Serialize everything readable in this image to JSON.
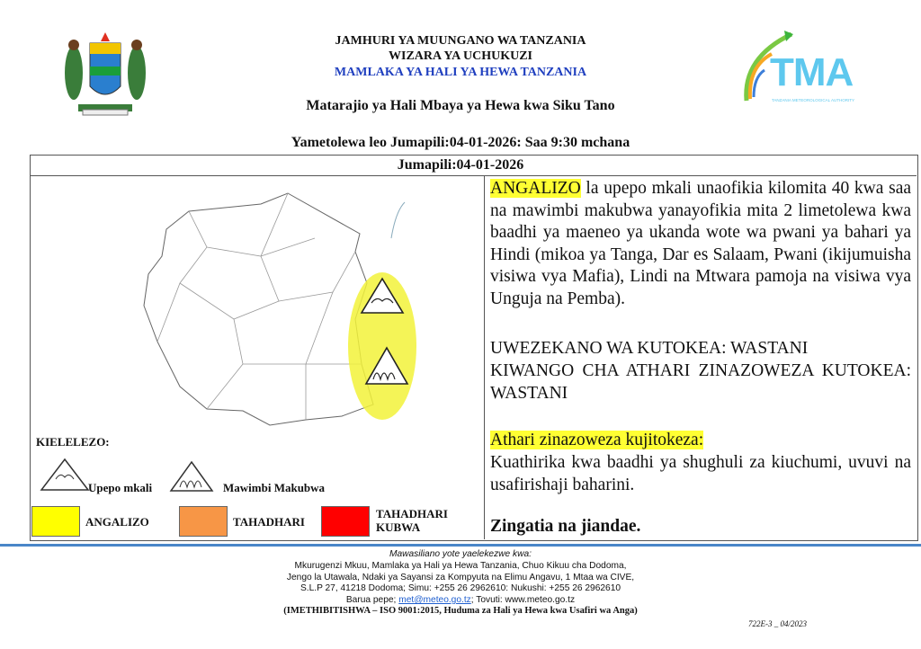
{
  "header": {
    "line1": "JAMHURI YA MUUNGANO WA TANZANIA",
    "line2": "WIZARA YA UCHUKUZI",
    "line3": "MAMLAKA YA HALI YA HEWA TANZANIA",
    "title": "Matarajio ya Hali Mbaya ya Hewa kwa Siku Tano",
    "issued": "Yametolewa leo Jumapili:04-01-2026: Saa 9:30 mchana",
    "logo_text": "TMA",
    "logo_sub": "TANZANIA METEOROLOGICAL AUTHORITY"
  },
  "day": "Jumapili:04-01-2026",
  "warning": {
    "level_word": "ANGALIZO",
    "para1": " la upepo mkali unaofikia kilomita 40 kwa saa na mawimbi makubwa yanayofikia mita 2 limetolewa kwa baadhi ya maeneo ya ukanda wote wa pwani ya bahari ya Hindi (mikoa ya Tanga, Dar es Salaam, Pwani (ikijumuisha visiwa vya Mafia), Lindi na Mtwara pamoja na visiwa vya Unguja na Pemba).",
    "likelihood": "UWEZEKANO WA KUTOKEA: WASTANI",
    "impact_level": "KIWANGO CHA ATHARI ZINAZOWEZA KUTOKEA: WASTANI",
    "impacts_heading": "Athari zinazoweza kujitokeza:",
    "impacts": "Kuathirika kwa baadhi ya shughuli za kiuchumi, uvuvi na usafirishaji baharini.",
    "closing": "Zingatia na jiandae."
  },
  "legend": {
    "title": "KIELELEZO:",
    "wind": "Upepo mkali",
    "waves": "Mawimbi Makubwa",
    "levels": [
      {
        "label": "ANGALIZO",
        "color": "#ffff00"
      },
      {
        "label": "TAHADHARI",
        "color": "#f79646"
      },
      {
        "label": "TAHADHARI KUBWA",
        "color": "#ff0000"
      }
    ]
  },
  "footer": {
    "heading": "Mawasiliano yote yaelekezwe kwa:",
    "line1": "Mkurugenzi Mkuu, Mamlaka ya Hali ya Hewa Tanzania, Chuo Kikuu cha Dodoma,",
    "line2": "Jengo la Utawala, Ndaki ya Sayansi za Kompyuta na Elimu Angavu, 1 Mtaa wa CIVE,",
    "line3": "S.L.P 27, 41218 Dodoma; Simu: +255 26 2962610: Nukushi: +255 26 2962610",
    "email_label": "Barua pepe; ",
    "email": "met@meteo.go.tz",
    "web": "; Tovuti: www.meteo.go.tz",
    "cert": "(IMETHIBITISHWA – ISO 9001:2015, Huduma za Hali ya Hewa kwa Usafiri wa Anga)",
    "code": "722E-3 _ 04/2023"
  },
  "colors": {
    "accent_blue": "#1f3fbf",
    "highlight": "#ffff33",
    "rule": "#4a86c8"
  }
}
